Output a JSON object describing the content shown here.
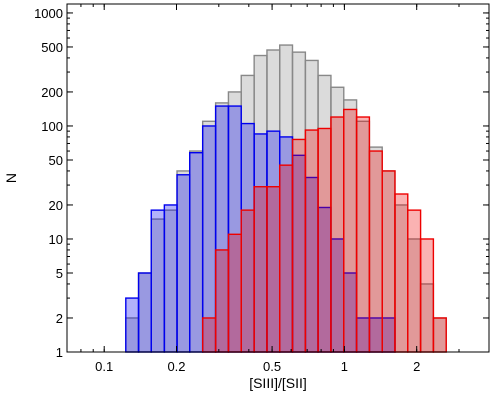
{
  "chart_data": {
    "type": "histogram",
    "xlabel": "[SIII]/[SII]",
    "ylabel": "N",
    "x_scale": "log",
    "y_scale": "log",
    "xlim": [
      0.07,
      4.0
    ],
    "ylim": [
      1,
      1200
    ],
    "x_ticks": [
      {
        "value": 0.1,
        "label": "0.1"
      },
      {
        "value": 0.2,
        "label": "0.2"
      },
      {
        "value": 0.5,
        "label": "0.5"
      },
      {
        "value": 1,
        "label": "1"
      },
      {
        "value": 2,
        "label": "2"
      }
    ],
    "y_ticks": [
      {
        "value": 1,
        "label": "1"
      },
      {
        "value": 2,
        "label": "2"
      },
      {
        "value": 5,
        "label": "5"
      },
      {
        "value": 10,
        "label": "10"
      },
      {
        "value": 20,
        "label": "20"
      },
      {
        "value": 50,
        "label": "50"
      },
      {
        "value": 100,
        "label": "100"
      },
      {
        "value": 200,
        "label": "200"
      },
      {
        "value": 500,
        "label": "500"
      },
      {
        "value": 1000,
        "label": "1000"
      }
    ],
    "bin_edges": [
      0.123,
      0.139,
      0.157,
      0.178,
      0.201,
      0.227,
      0.257,
      0.291,
      0.329,
      0.372,
      0.421,
      0.476,
      0.538,
      0.608,
      0.688,
      0.777,
      0.879,
      0.994,
      1.124,
      1.271,
      1.437,
      1.624,
      1.836,
      2.076,
      2.347,
      2.654
    ],
    "series": [
      {
        "color": "#888888",
        "values": [
          2,
          5,
          15,
          18,
          40,
          60,
          110,
          160,
          200,
          280,
          420,
          470,
          520,
          450,
          380,
          280,
          220,
          170,
          110,
          65,
          40,
          20,
          10,
          4,
          2
        ]
      },
      {
        "color": "#0000ee",
        "values": [
          3,
          5,
          18,
          20,
          37,
          58,
          100,
          150,
          150,
          105,
          85,
          90,
          80,
          55,
          35,
          19,
          10,
          5,
          2,
          2,
          2,
          1,
          1,
          1,
          1
        ]
      },
      {
        "color": "#ee0000",
        "values": [
          1,
          1,
          1,
          1,
          1,
          1,
          2,
          8,
          11,
          18,
          29,
          29,
          45,
          76,
          92,
          95,
          120,
          140,
          120,
          60,
          40,
          25,
          18,
          10,
          2
        ]
      }
    ]
  }
}
